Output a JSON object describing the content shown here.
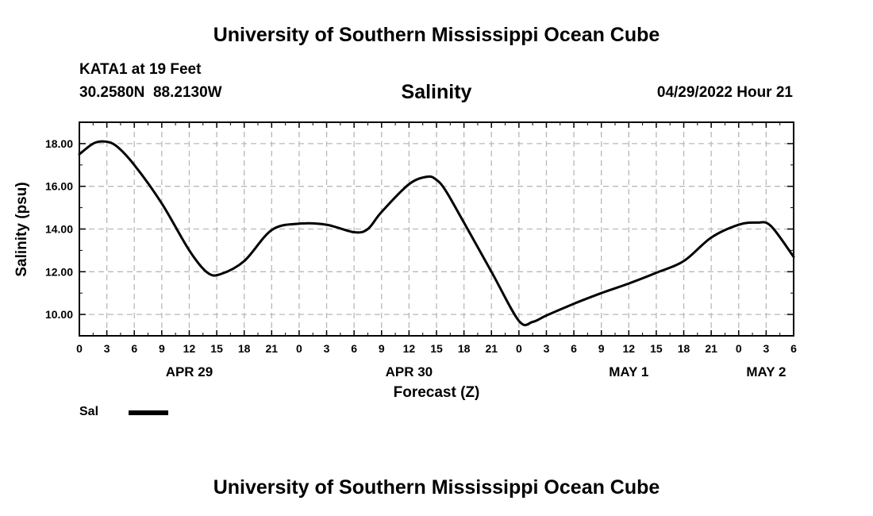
{
  "header": {
    "title_top": "University of Southern Mississippi Ocean Cube",
    "station": "KATA1 at 19 Feet",
    "coords": "30.2580N  88.2130W",
    "variable": "Salinity",
    "datetime": "04/29/2022 Hour 21",
    "title_bottom": "University of Southern Mississippi Ocean Cube"
  },
  "legend": {
    "label": "Sal"
  },
  "chart_data": {
    "type": "line",
    "title": "Salinity",
    "xlabel": "Forecast (Z)",
    "ylabel": "Salinity (psu)",
    "xlim": [
      0,
      78
    ],
    "ylim": [
      9.0,
      19.0
    ],
    "y_ticks": [
      10,
      12,
      14,
      16,
      18
    ],
    "y_tick_labels": [
      "10.00",
      "12.00",
      "14.00",
      "16.00",
      "18.00"
    ],
    "x_ticks": [
      0,
      3,
      6,
      9,
      12,
      15,
      18,
      21,
      24,
      27,
      30,
      33,
      36,
      39,
      42,
      45,
      48,
      51,
      54,
      57,
      60,
      63,
      66,
      69,
      72,
      75,
      78
    ],
    "x_tick_labels": [
      "0",
      "3",
      "6",
      "9",
      "12",
      "15",
      "18",
      "21",
      "0",
      "3",
      "6",
      "9",
      "12",
      "15",
      "18",
      "21",
      "0",
      "3",
      "6",
      "9",
      "12",
      "15",
      "18",
      "21",
      "0",
      "3",
      "6"
    ],
    "date_labels": [
      {
        "x": 12,
        "label": "APR 29"
      },
      {
        "x": 36,
        "label": "APR 30"
      },
      {
        "x": 60,
        "label": "MAY 1"
      },
      {
        "x": 75,
        "label": "MAY 2"
      }
    ],
    "grid": true,
    "series": [
      {
        "name": "Sal",
        "color": "#000000",
        "x": [
          0,
          1.5,
          2.7,
          4,
          6,
          9,
          12,
          14,
          15.5,
          18,
          21,
          24,
          27,
          30,
          31.5,
          33,
          36,
          38,
          39,
          40,
          42,
          45,
          48,
          49.5,
          51,
          54,
          57,
          60,
          63,
          66,
          69,
          72,
          74,
          75.5,
          78
        ],
        "y": [
          17.5,
          18.0,
          18.1,
          17.9,
          17.0,
          15.2,
          13.0,
          11.95,
          11.9,
          12.5,
          13.95,
          14.25,
          14.2,
          13.85,
          14.0,
          14.8,
          16.1,
          16.45,
          16.3,
          15.8,
          14.3,
          12.0,
          9.7,
          9.65,
          9.95,
          10.5,
          11.0,
          11.45,
          11.95,
          12.5,
          13.6,
          14.2,
          14.3,
          14.15,
          12.7
        ]
      }
    ]
  }
}
